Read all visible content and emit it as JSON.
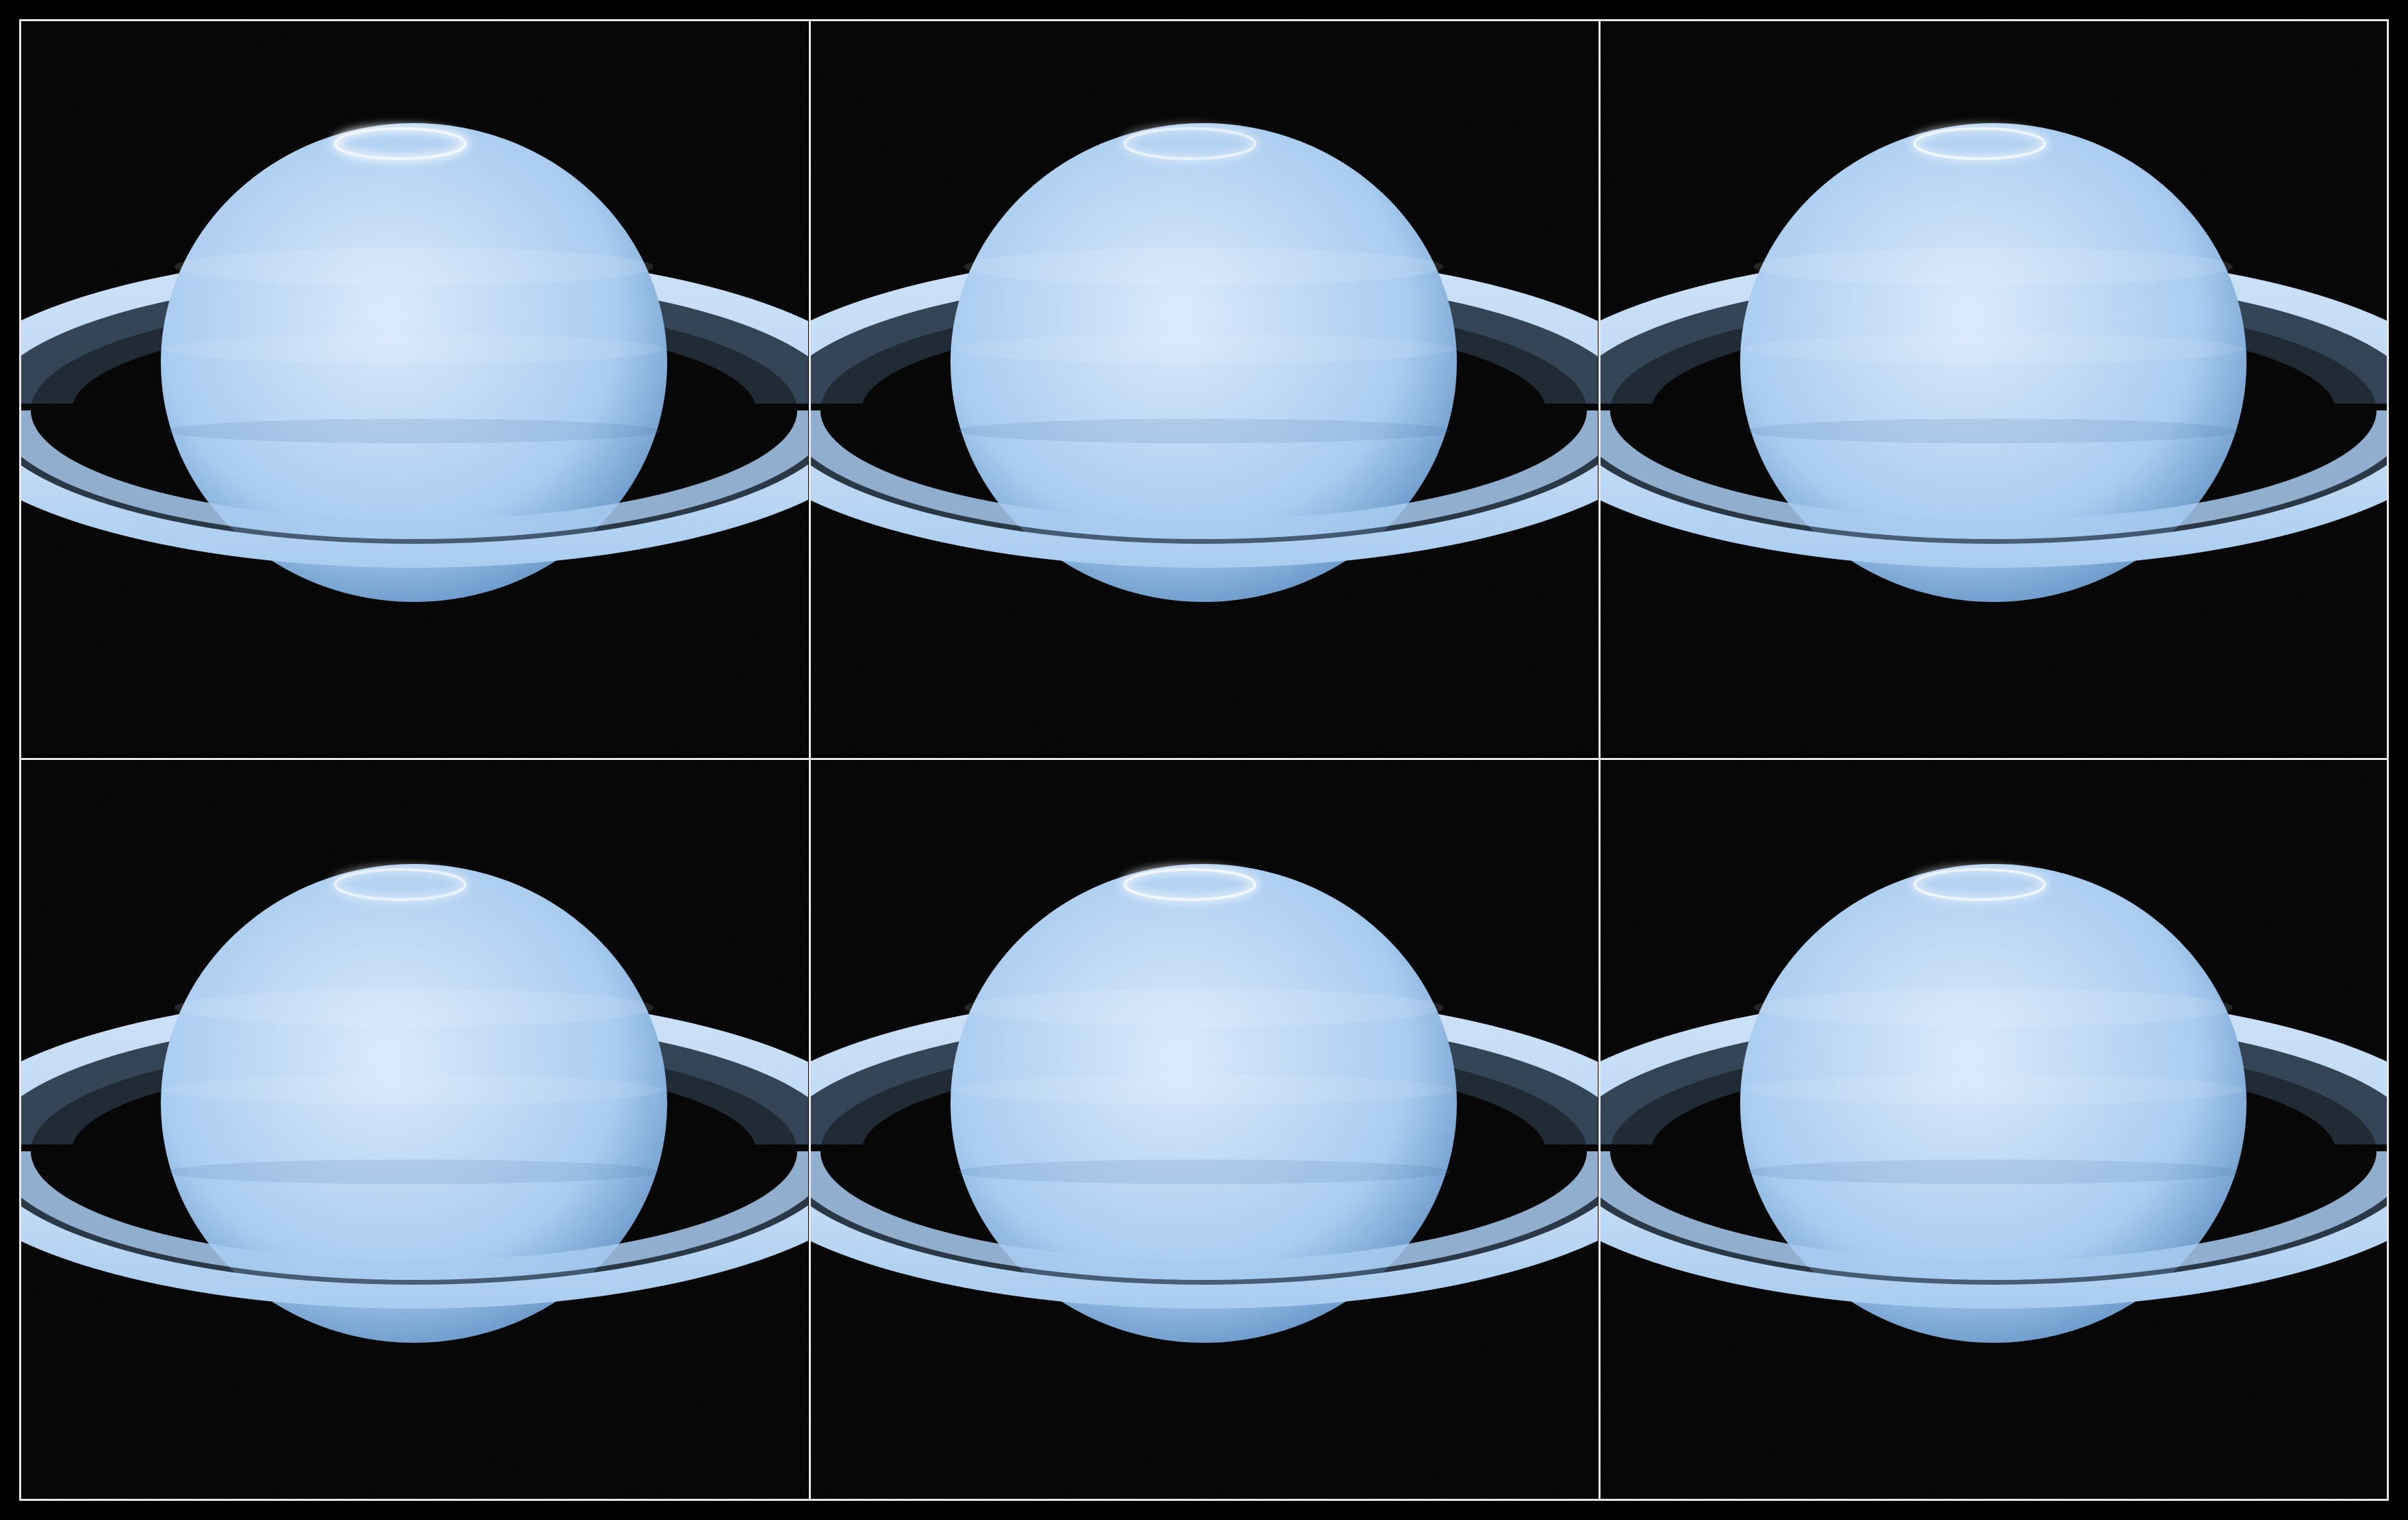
{
  "image": {
    "description_free": true,
    "layout": "grid",
    "rows": 2,
    "columns": 3
  },
  "colors": {
    "background": "#000000",
    "grid_line": "#e6e6e6",
    "planet_light": "#dcecff",
    "planet_mid": "#a8cdf2",
    "planet_dark": "#5e8fc4",
    "ring_light": "#cfe4fb",
    "ring_dark": "#2e4052",
    "aurora": "#f4f9ff"
  },
  "panels": [
    {
      "aurora_intensity": 1.0,
      "aurora_shape": "bright-arc-left"
    },
    {
      "aurora_intensity": 0.55,
      "aurora_shape": "faint-ring"
    },
    {
      "aurora_intensity": 0.7,
      "aurora_shape": "ring"
    },
    {
      "aurora_intensity": 0.6,
      "aurora_shape": "ring"
    },
    {
      "aurora_intensity": 0.85,
      "aurora_shape": "ring-bright-right"
    },
    {
      "aurora_intensity": 0.65,
      "aurora_shape": "ring-small"
    }
  ]
}
